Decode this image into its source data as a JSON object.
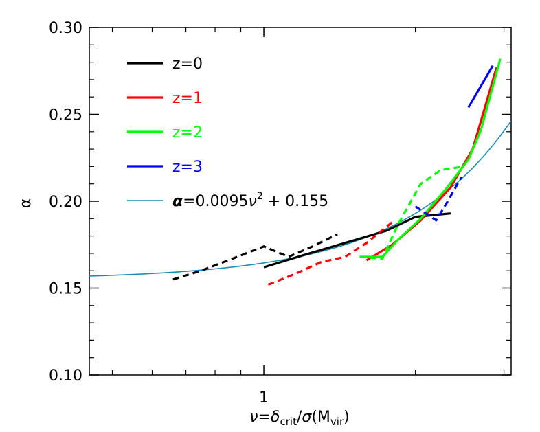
{
  "chart_data": {
    "type": "line",
    "xscale": "log",
    "xlim": [
      0.45,
      3.1
    ],
    "ylim": [
      0.1,
      0.3
    ],
    "xlabel_parts": {
      "nu": "ν",
      "eq": "=",
      "delta": "δ",
      "crit": "crit",
      "slash": "/",
      "sigma": "σ",
      "open": "(M",
      "vir": "vir",
      "close": ")"
    },
    "ylabel": "α",
    "x_ticks_major": [
      {
        "value": 1,
        "label": "1"
      }
    ],
    "x_ticks_minor": [
      0.5,
      0.6,
      0.7,
      0.8,
      0.9,
      2,
      3
    ],
    "y_ticks": [
      {
        "value": 0.1,
        "label": "0.10"
      },
      {
        "value": 0.15,
        "label": "0.15"
      },
      {
        "value": 0.2,
        "label": "0.20"
      },
      {
        "value": 0.25,
        "label": "0.25"
      },
      {
        "value": 0.3,
        "label": "0.30"
      }
    ],
    "legend": [
      {
        "label": "z=0",
        "color": "#000000"
      },
      {
        "label": "z=1",
        "color": "#ff0000"
      },
      {
        "label": "z=2",
        "color": "#00ff00"
      },
      {
        "label": "z=3",
        "color": "#0000ff"
      }
    ],
    "fit_legend": {
      "alpha": "α",
      "text": "=0.0095",
      "nu": "ν",
      "sup": "2",
      "rest": " + 0.155",
      "color": "#1a8cb0"
    },
    "fit": {
      "a": 0.0095,
      "c": 0.155,
      "power": 2,
      "color": "#1a8cb0"
    },
    "series": [
      {
        "color": "#000000",
        "style": "dashed",
        "x": [
          0.66,
          0.75,
          0.85,
          1.0,
          1.12,
          1.25,
          1.4
        ],
        "y": [
          0.155,
          0.16,
          0.166,
          0.174,
          0.168,
          0.174,
          0.181
        ]
      },
      {
        "color": "#000000",
        "style": "solid",
        "x": [
          1.0,
          1.2,
          1.45,
          1.75,
          2.0,
          2.35
        ],
        "y": [
          0.162,
          0.169,
          0.176,
          0.183,
          0.191,
          0.193
        ]
      },
      {
        "color": "#ff0000",
        "style": "dashed",
        "x": [
          1.02,
          1.15,
          1.3,
          1.45,
          1.6,
          1.8
        ],
        "y": [
          0.152,
          0.158,
          0.165,
          0.168,
          0.176,
          0.188
        ]
      },
      {
        "color": "#ff0000",
        "style": "solid",
        "x": [
          1.6,
          1.8,
          2.05,
          2.35,
          2.6,
          2.9
        ],
        "y": [
          0.166,
          0.175,
          0.189,
          0.208,
          0.23,
          0.277
        ]
      },
      {
        "color": "#00ff00",
        "style": "dashed",
        "x": [
          1.55,
          1.72,
          1.85,
          2.05,
          2.25,
          2.5
        ],
        "y": [
          0.168,
          0.167,
          0.187,
          0.21,
          0.218,
          0.22
        ]
      },
      {
        "color": "#00ff00",
        "style": "solid",
        "x": [
          1.55,
          1.72,
          1.85,
          2.05,
          2.3,
          2.55,
          2.7,
          2.95
        ],
        "y": [
          0.168,
          0.168,
          0.178,
          0.19,
          0.207,
          0.224,
          0.241,
          0.282
        ]
      },
      {
        "color": "#0000ff",
        "style": "dashed",
        "x": [
          2.0,
          2.2,
          2.32,
          2.47
        ],
        "y": [
          0.197,
          0.189,
          0.2,
          0.214
        ]
      },
      {
        "color": "#0000ff",
        "style": "solid",
        "x": [
          2.55,
          2.85
        ],
        "y": [
          0.254,
          0.278
        ]
      }
    ]
  }
}
